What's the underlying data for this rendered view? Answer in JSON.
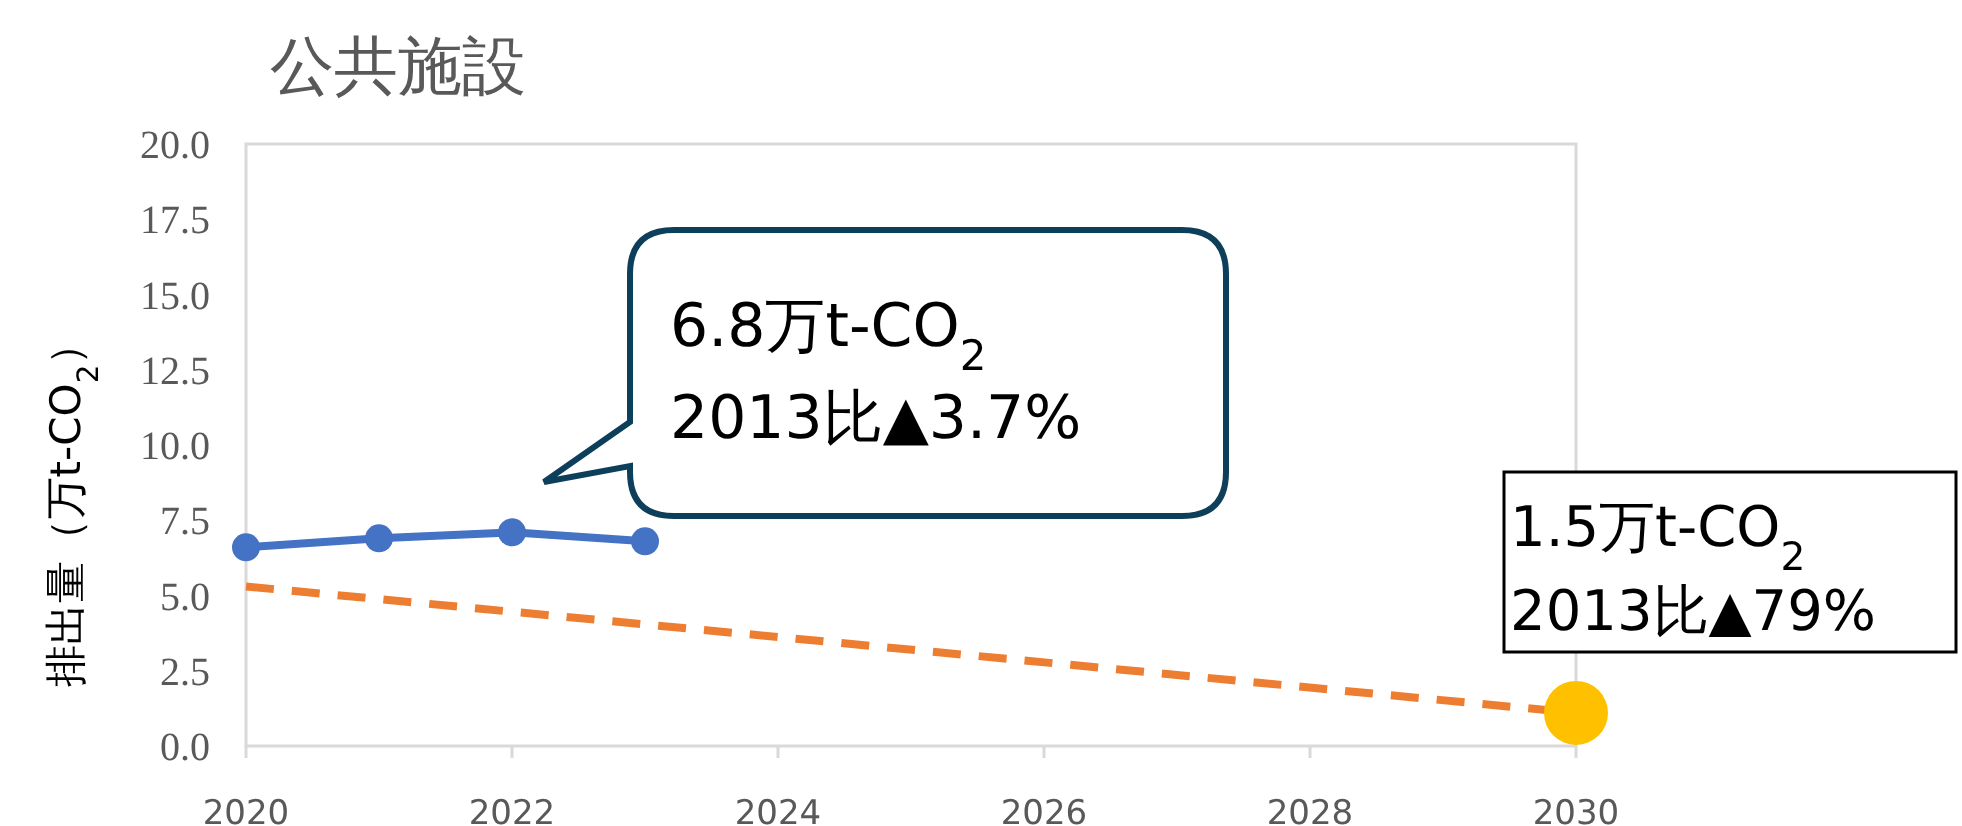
{
  "chart_data": {
    "type": "line",
    "title": "公共施設",
    "ylabel": "排出量（万t-CO$_{2}$）",
    "xlim": [
      2020,
      2030
    ],
    "ylim": [
      0,
      20
    ],
    "xticks": [
      2020,
      2022,
      2024,
      2026,
      2028,
      2030
    ],
    "yticks": [
      {
        "value": 0,
        "label": "0.0"
      },
      {
        "value": 2.5,
        "label": "2.5"
      },
      {
        "value": 5,
        "label": "5.0"
      },
      {
        "value": 7.5,
        "label": "7.5"
      },
      {
        "value": 10,
        "label": "10.0"
      },
      {
        "value": 12.5,
        "label": "12.5"
      },
      {
        "value": 15,
        "label": "15.0"
      },
      {
        "value": 17.5,
        "label": "17.5"
      },
      {
        "value": 20,
        "label": "20.0"
      }
    ],
    "grid": false,
    "series": [
      {
        "color": "#4472c4",
        "marker": "circle",
        "line_style": "solid",
        "x": [
          2020,
          2021,
          2022,
          2023
        ],
        "values": [
          6.6,
          6.9,
          7.1,
          6.8
        ]
      },
      {
        "color": "#ed7d31",
        "marker": "none",
        "line_style": "dashed",
        "x": [
          2020,
          2030
        ],
        "values": [
          5.3,
          1.1
        ]
      },
      {
        "type": "scatter",
        "color": "#ffc000",
        "marker": "circle",
        "x": [
          2030
        ],
        "values": [
          1.1
        ]
      }
    ],
    "annotations": [
      "6.8万t-CO$_{2}$\n2013比▲3.7%",
      "1.5万t-CO$_{2}$\n2013比▲79%"
    ]
  }
}
